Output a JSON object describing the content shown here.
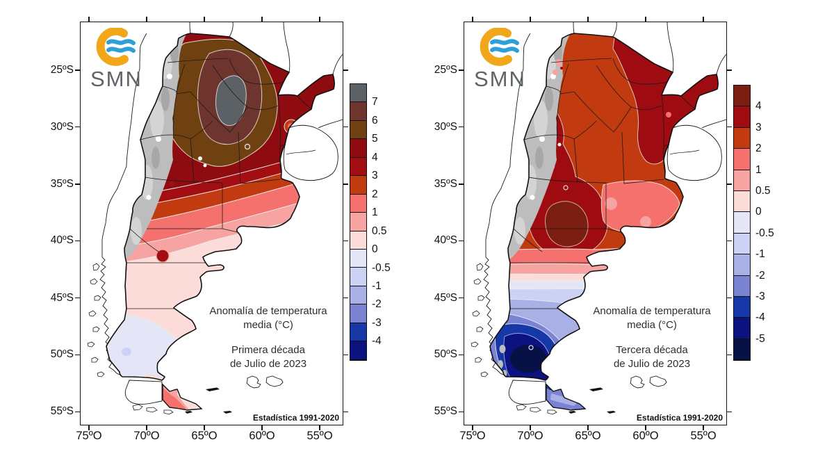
{
  "palette": {
    "g7": "#5c6165",
    "m67": "#6e352e",
    "b56": "#6f4110",
    "r45": "#8e0b10",
    "r34": "#a30e13",
    "r4p": "#7b1d10",
    "r34b": "#9e0b10",
    "o23": "#c23a10",
    "s12": "#f4716e",
    "p05": "#f7a3a2",
    "lp0": "#fcdcd8",
    "pb0": "#e4e6f8",
    "lv1": "#ccd2f3",
    "lv2": "#a9b0e6",
    "pu3": "#7a83d2",
    "bl4": "#1638a6",
    "nv5": "#0c1280",
    "nv6": "#071145",
    "andes": "#bdbdbd",
    "andes_light": "#d4d4d4",
    "andes_dark": "#a7a7a7",
    "logo_orange": "#f2a71b",
    "logo_blue": "#2f9fd8"
  },
  "panels": [
    {
      "logo_text": "SMN",
      "annotation_l1": "Anomalía de temperatura",
      "annotation_l2": "media (°C)",
      "period_l1": "Primera década",
      "period_l2": "de Julio de 2023",
      "stats": "Estadística 1991-2020",
      "lat_ticks": [
        "25ºS",
        "30ºS",
        "35ºS",
        "40ºS",
        "45ºS",
        "50ºS",
        "55ºS"
      ],
      "lon_ticks": [
        "75ºO",
        "70ºO",
        "65ºO",
        "60ºO",
        "55ºO"
      ],
      "colorbar": {
        "labels": [
          "7",
          "6",
          "5",
          "4",
          "3",
          "2",
          "1",
          "0.5",
          "0",
          "-0.5",
          "-1",
          "-2",
          "-3",
          "-4"
        ],
        "colors": [
          "#5c6165",
          "#6e352e",
          "#6f4110",
          "#8e0b10",
          "#a30e13",
          "#c23a10",
          "#f4716e",
          "#f7a3a2",
          "#fcdcd8",
          "#e4e6f8",
          "#ccd2f3",
          "#a9b0e6",
          "#7a83d2",
          "#1638a6",
          "#0c1280"
        ]
      }
    },
    {
      "logo_text": "SMN",
      "annotation_l1": "Anomalía de temperatura",
      "annotation_l2": "media (°C)",
      "period_l1": "Tercera década",
      "period_l2": "de Julio de 2023",
      "stats": "Estadística 1991-2020",
      "lat_ticks": [
        "25ºS",
        "30ºS",
        "35ºS",
        "40ºS",
        "45ºS",
        "50ºS",
        "55ºS"
      ],
      "lon_ticks": [
        "75ºO",
        "70ºO",
        "65ºO",
        "60ºO",
        "55ºO"
      ],
      "colorbar": {
        "labels": [
          "4",
          "3",
          "2",
          "1",
          "0.5",
          "0",
          "-0.5",
          "-1",
          "-2",
          "-3",
          "-4",
          "-5"
        ],
        "colors": [
          "#7b1d10",
          "#9e0b10",
          "#c23a10",
          "#f4716e",
          "#f7a3a2",
          "#fcdcd8",
          "#e4e6f8",
          "#ccd2f3",
          "#a9b0e6",
          "#7a83d2",
          "#1638a6",
          "#0c1280",
          "#071145"
        ]
      }
    }
  ]
}
